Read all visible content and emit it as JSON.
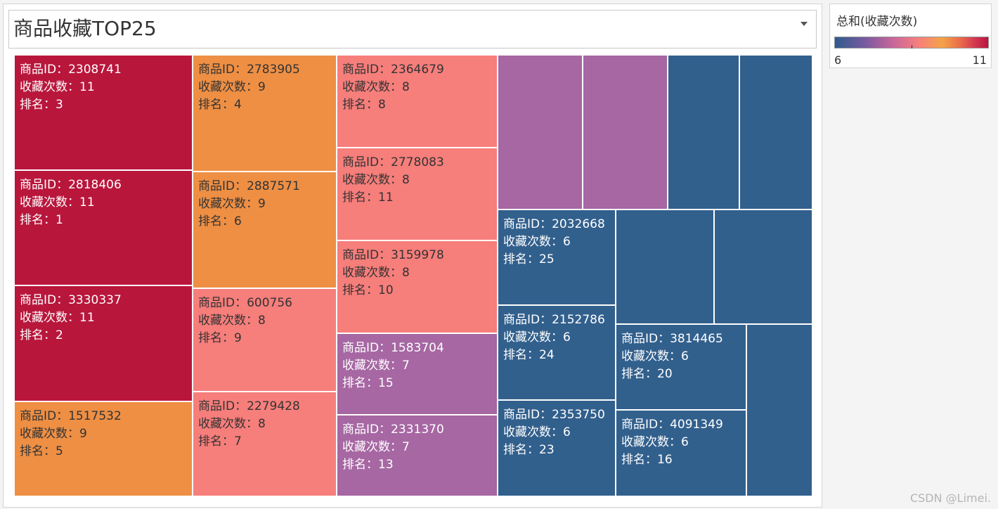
{
  "title": "商品收藏TOP25",
  "legend": {
    "title": "总和(收藏次数)",
    "min": "6",
    "max": "11"
  },
  "watermark": "CSDN @Limei.",
  "labels": {
    "id": "商品ID：",
    "count": "收藏次数：",
    "rank": "排名："
  },
  "colors": {
    "11": "#b9163c",
    "9": "#ee8f44",
    "8": "#f67e7b",
    "7": "#a667a3",
    "6": "#32608d"
  },
  "chart_data": {
    "type": "treemap",
    "measure": "总和(收藏次数)",
    "color_range": [
      6,
      11
    ],
    "items": [
      {
        "id": "2308741",
        "count": 11,
        "rank": 3,
        "labeled": true
      },
      {
        "id": "2818406",
        "count": 11,
        "rank": 1,
        "labeled": true
      },
      {
        "id": "3330337",
        "count": 11,
        "rank": 2,
        "labeled": true
      },
      {
        "id": "1517532",
        "count": 9,
        "rank": 5,
        "labeled": true
      },
      {
        "id": "2783905",
        "count": 9,
        "rank": 4,
        "labeled": true
      },
      {
        "id": "2887571",
        "count": 9,
        "rank": 6,
        "labeled": true
      },
      {
        "id": "600756",
        "count": 8,
        "rank": 9,
        "labeled": true
      },
      {
        "id": "2279428",
        "count": 8,
        "rank": 7,
        "labeled": true
      },
      {
        "id": "2364679",
        "count": 8,
        "rank": 8,
        "labeled": true
      },
      {
        "id": "2778083",
        "count": 8,
        "rank": 11,
        "labeled": true
      },
      {
        "id": "3159978",
        "count": 8,
        "rank": 10,
        "labeled": true
      },
      {
        "id": "1583704",
        "count": 7,
        "rank": 15,
        "labeled": true
      },
      {
        "id": "2331370",
        "count": 7,
        "rank": 13,
        "labeled": true
      },
      {
        "count": 7,
        "labeled": false
      },
      {
        "count": 7,
        "labeled": false
      },
      {
        "count": 6,
        "labeled": false
      },
      {
        "count": 6,
        "labeled": false
      },
      {
        "id": "2032668",
        "count": 6,
        "rank": 25,
        "labeled": true
      },
      {
        "id": "2152786",
        "count": 6,
        "rank": 24,
        "labeled": true
      },
      {
        "id": "2353750",
        "count": 6,
        "rank": 23,
        "labeled": true
      },
      {
        "count": 6,
        "labeled": false
      },
      {
        "count": 6,
        "labeled": false
      },
      {
        "id": "3814465",
        "count": 6,
        "rank": 20,
        "labeled": true
      },
      {
        "id": "4091349",
        "count": 6,
        "rank": 16,
        "labeled": true
      },
      {
        "count": 6,
        "labeled": false
      }
    ]
  }
}
